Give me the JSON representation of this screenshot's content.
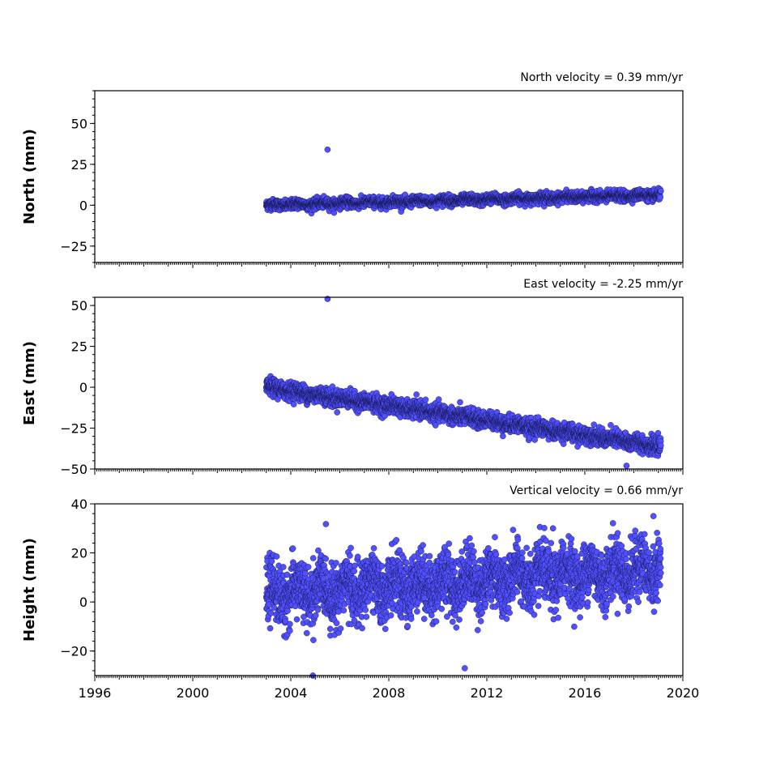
{
  "chart_data": [
    {
      "type": "scatter",
      "ylabel": "North (mm)",
      "annotation": "North velocity = 0.39 mm/yr",
      "xlim": [
        1996,
        2020
      ],
      "ylim": [
        -35,
        70
      ],
      "yticks": [
        -25,
        0,
        25,
        50
      ],
      "ytick_labels": [
        "−25",
        "0",
        "25",
        "50"
      ],
      "velocity_mm_per_yr": 0.39,
      "series_start": 2003.0,
      "series_end": 2019.1,
      "intercept_mm": 0.0,
      "scatter_mm": 1.5,
      "outliers": [
        {
          "x": 2005.5,
          "y": 34
        }
      ],
      "grid": false
    },
    {
      "type": "scatter",
      "ylabel": "East (mm)",
      "annotation": "East velocity = -2.25 mm/yr",
      "xlim": [
        1996,
        2020
      ],
      "ylim": [
        -50,
        55
      ],
      "yticks": [
        -50,
        -25,
        0,
        25,
        50
      ],
      "ytick_labels": [
        "−50",
        "−25",
        "0",
        "25",
        "50"
      ],
      "velocity_mm_per_yr": -2.25,
      "series_start": 2003.0,
      "series_end": 2019.1,
      "intercept_mm": 0.0,
      "scatter_mm": 2.5,
      "outliers": [
        {
          "x": 2005.5,
          "y": 54
        },
        {
          "x": 2017.7,
          "y": -48
        }
      ],
      "grid": false
    },
    {
      "type": "scatter",
      "ylabel": "Height (mm)",
      "annotation": "Vertical velocity = 0.66 mm/yr",
      "xlim": [
        1996,
        2020
      ],
      "ylim": [
        -30,
        40
      ],
      "yticks": [
        -20,
        0,
        20,
        40
      ],
      "ytick_labels": [
        "−20",
        "0",
        "20",
        "40"
      ],
      "xticks": [
        1996,
        2000,
        2004,
        2008,
        2012,
        2016,
        2020
      ],
      "xtick_labels": [
        "1996",
        "2000",
        "2004",
        "2008",
        "2012",
        "2016",
        "2020"
      ],
      "velocity_mm_per_yr": 0.66,
      "series_start": 2003.0,
      "series_end": 2019.1,
      "intercept_mm": 3.0,
      "scatter_mm": 6.0,
      "outliers": [
        {
          "x": 2004.9,
          "y": -30
        },
        {
          "x": 2011.1,
          "y": -27
        },
        {
          "x": 2018.8,
          "y": 35
        },
        {
          "x": 2014.7,
          "y": 30
        }
      ],
      "grid": false
    }
  ],
  "colors": {
    "marker_fill": "#5050ff",
    "marker_edge": "#101040"
  }
}
